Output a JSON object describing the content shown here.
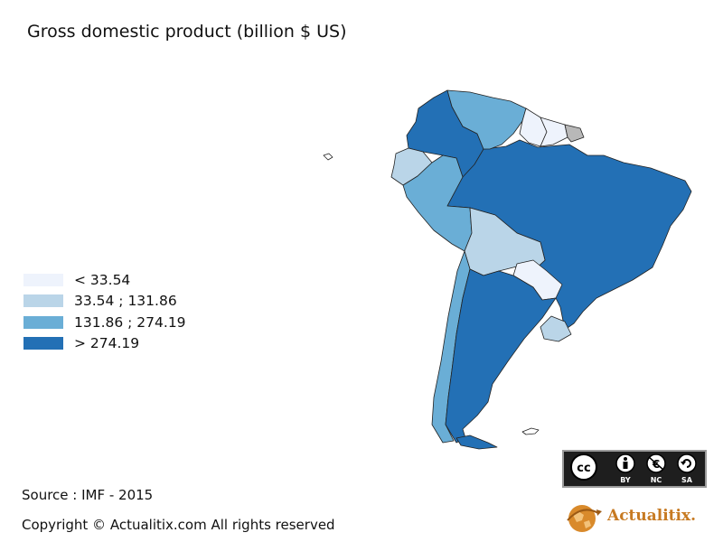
{
  "title": "Gross domestic product (billion $ US)",
  "legend": [
    {
      "label": "< 33.54",
      "color": "#eef3fc"
    },
    {
      "label": "33.54 ; 131.86",
      "color": "#bad5e8"
    },
    {
      "label": "131.86 ; 274.19",
      "color": "#6aaed6"
    },
    {
      "label": "> 274.19",
      "color": "#2370b5"
    }
  ],
  "no_data_color": "#b8b8b8",
  "countries": [
    {
      "name": "Colombia",
      "class": 3
    },
    {
      "name": "Venezuela",
      "class": 2
    },
    {
      "name": "Guyana",
      "class": 0
    },
    {
      "name": "Suriname",
      "class": 0
    },
    {
      "name": "French Guiana",
      "class": -1
    },
    {
      "name": "Ecuador",
      "class": 1
    },
    {
      "name": "Peru",
      "class": 2
    },
    {
      "name": "Brazil",
      "class": 3
    },
    {
      "name": "Bolivia",
      "class": 1
    },
    {
      "name": "Paraguay",
      "class": 0
    },
    {
      "name": "Chile",
      "class": 2
    },
    {
      "name": "Argentina",
      "class": 3
    },
    {
      "name": "Uruguay",
      "class": 1
    }
  ],
  "source": "Source : IMF - 2015",
  "copyright": "Copyright © Actualitix.com All rights reserved",
  "license": {
    "icons": [
      "cc-icon",
      "by-icon",
      "nc-icon",
      "sa-icon"
    ],
    "labels": [
      "BY",
      "NC",
      "SA"
    ]
  },
  "brand": {
    "name": "Actualitix.",
    "icon": "globe-icon",
    "color": "#c77a22"
  }
}
